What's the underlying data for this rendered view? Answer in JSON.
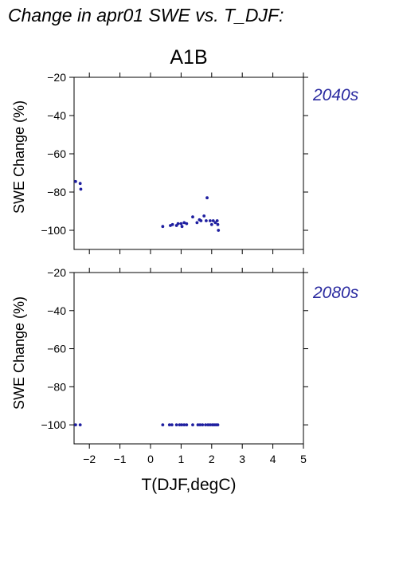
{
  "header": {
    "title": "Change in apr01 SWE vs. T_DJF:",
    "scenario": "A1B"
  },
  "chart_data": [
    {
      "type": "scatter",
      "panel_label": "2040s",
      "ylabel": "SWE Change (%)",
      "xlabel": "",
      "xlim": [
        -2.5,
        5
      ],
      "ylim": [
        -110,
        -20
      ],
      "xticks": [
        -2,
        -1,
        0,
        1,
        2,
        3,
        4,
        5
      ],
      "xtick_labels": [],
      "yticks": [
        -20,
        -40,
        -60,
        -80,
        -100
      ],
      "ytick_labels": [
        "−20",
        "−40",
        "−60",
        "−80",
        "−100"
      ],
      "points": [
        {
          "x": -2.45,
          "y": -74.5
        },
        {
          "x": -2.3,
          "y": -75.5
        },
        {
          "x": -2.28,
          "y": -78.5
        },
        {
          "x": 0.4,
          "y": -98
        },
        {
          "x": 0.65,
          "y": -97.5
        },
        {
          "x": 0.72,
          "y": -97
        },
        {
          "x": 0.85,
          "y": -97.5
        },
        {
          "x": 0.9,
          "y": -96.5
        },
        {
          "x": 1.0,
          "y": -96.5
        },
        {
          "x": 1.03,
          "y": -98
        },
        {
          "x": 1.1,
          "y": -96
        },
        {
          "x": 1.18,
          "y": -96.5
        },
        {
          "x": 1.38,
          "y": -93
        },
        {
          "x": 1.52,
          "y": -96
        },
        {
          "x": 1.6,
          "y": -94.5
        },
        {
          "x": 1.65,
          "y": -95
        },
        {
          "x": 1.75,
          "y": -92.5
        },
        {
          "x": 1.82,
          "y": -95
        },
        {
          "x": 1.85,
          "y": -83
        },
        {
          "x": 1.95,
          "y": -95
        },
        {
          "x": 2.0,
          "y": -97
        },
        {
          "x": 2.05,
          "y": -95
        },
        {
          "x": 2.12,
          "y": -96
        },
        {
          "x": 2.18,
          "y": -95
        },
        {
          "x": 2.2,
          "y": -97
        },
        {
          "x": 2.22,
          "y": -100
        }
      ]
    },
    {
      "type": "scatter",
      "panel_label": "2080s",
      "ylabel": "SWE Change (%)",
      "xlabel": "T(DJF,degC)",
      "xlim": [
        -2.5,
        5
      ],
      "ylim": [
        -110,
        -20
      ],
      "xticks": [
        -2,
        -1,
        0,
        1,
        2,
        3,
        4,
        5
      ],
      "xtick_labels": [
        "−2",
        "−1",
        "0",
        "1",
        "2",
        "3",
        "4",
        "5"
      ],
      "yticks": [
        -20,
        -40,
        -60,
        -80,
        -100
      ],
      "ytick_labels": [
        "−20",
        "−40",
        "−60",
        "−80",
        "−100"
      ],
      "points": [
        {
          "x": -2.45,
          "y": -100
        },
        {
          "x": -2.3,
          "y": -100
        },
        {
          "x": 0.4,
          "y": -100
        },
        {
          "x": 0.62,
          "y": -100
        },
        {
          "x": 0.7,
          "y": -100
        },
        {
          "x": 0.85,
          "y": -100
        },
        {
          "x": 0.95,
          "y": -100
        },
        {
          "x": 1.02,
          "y": -100
        },
        {
          "x": 1.1,
          "y": -100
        },
        {
          "x": 1.18,
          "y": -100
        },
        {
          "x": 1.38,
          "y": -100
        },
        {
          "x": 1.55,
          "y": -100
        },
        {
          "x": 1.62,
          "y": -100
        },
        {
          "x": 1.7,
          "y": -100
        },
        {
          "x": 1.8,
          "y": -100
        },
        {
          "x": 1.88,
          "y": -100
        },
        {
          "x": 1.95,
          "y": -100
        },
        {
          "x": 2.02,
          "y": -100
        },
        {
          "x": 2.08,
          "y": -100
        },
        {
          "x": 2.14,
          "y": -100
        },
        {
          "x": 2.2,
          "y": -100
        }
      ]
    }
  ]
}
